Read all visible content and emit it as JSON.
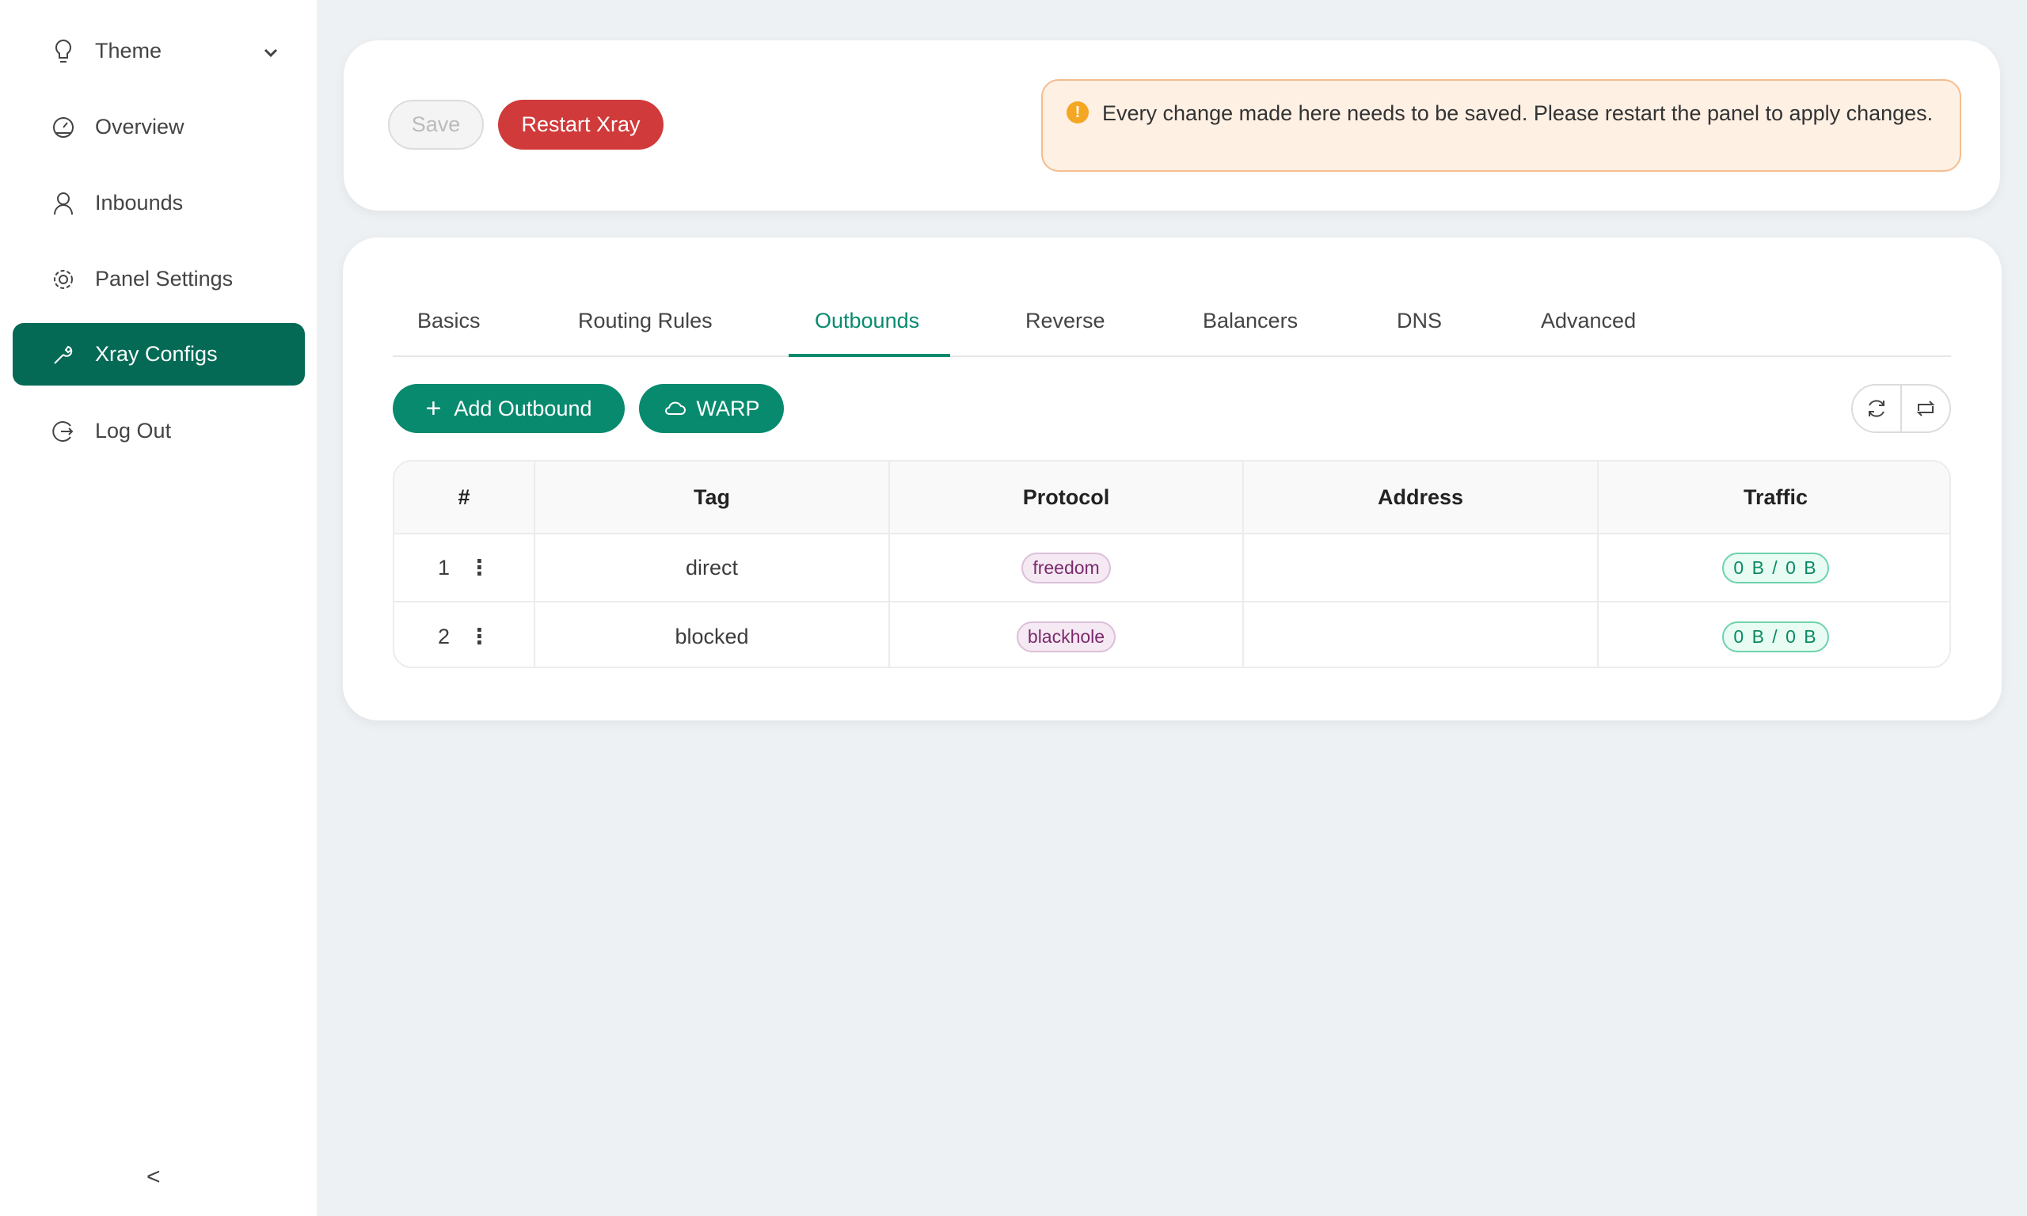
{
  "sidebar": {
    "items": [
      {
        "label": "Theme",
        "icon": "bulb-icon"
      },
      {
        "label": "Overview",
        "icon": "dashboard-icon"
      },
      {
        "label": "Inbounds",
        "icon": "user-icon"
      },
      {
        "label": "Panel Settings",
        "icon": "gear-icon"
      },
      {
        "label": "Xray Configs",
        "icon": "wrench-icon",
        "active": true
      },
      {
        "label": "Log Out",
        "icon": "logout-icon"
      }
    ],
    "collapse": "<"
  },
  "toolbar": {
    "save": "Save",
    "restart": "Restart Xray",
    "alert": "Every change made here needs to be saved. Please restart the panel to apply changes."
  },
  "tabs": [
    "Basics",
    "Routing Rules",
    "Outbounds",
    "Reverse",
    "Balancers",
    "DNS",
    "Advanced"
  ],
  "active_tab": "Outbounds",
  "actions": {
    "add": "Add Outbound",
    "warp": "WARP"
  },
  "table": {
    "headers": [
      "#",
      "Tag",
      "Protocol",
      "Address",
      "Traffic"
    ],
    "rows": [
      {
        "num": "1",
        "tag": "direct",
        "protocol": "freedom",
        "address": "",
        "traffic": "0 B / 0 B"
      },
      {
        "num": "2",
        "tag": "blocked",
        "protocol": "blackhole",
        "address": "",
        "traffic": "0 B / 0 B"
      }
    ]
  },
  "colors": {
    "accent": "#046a55",
    "danger": "#d13a3a"
  }
}
